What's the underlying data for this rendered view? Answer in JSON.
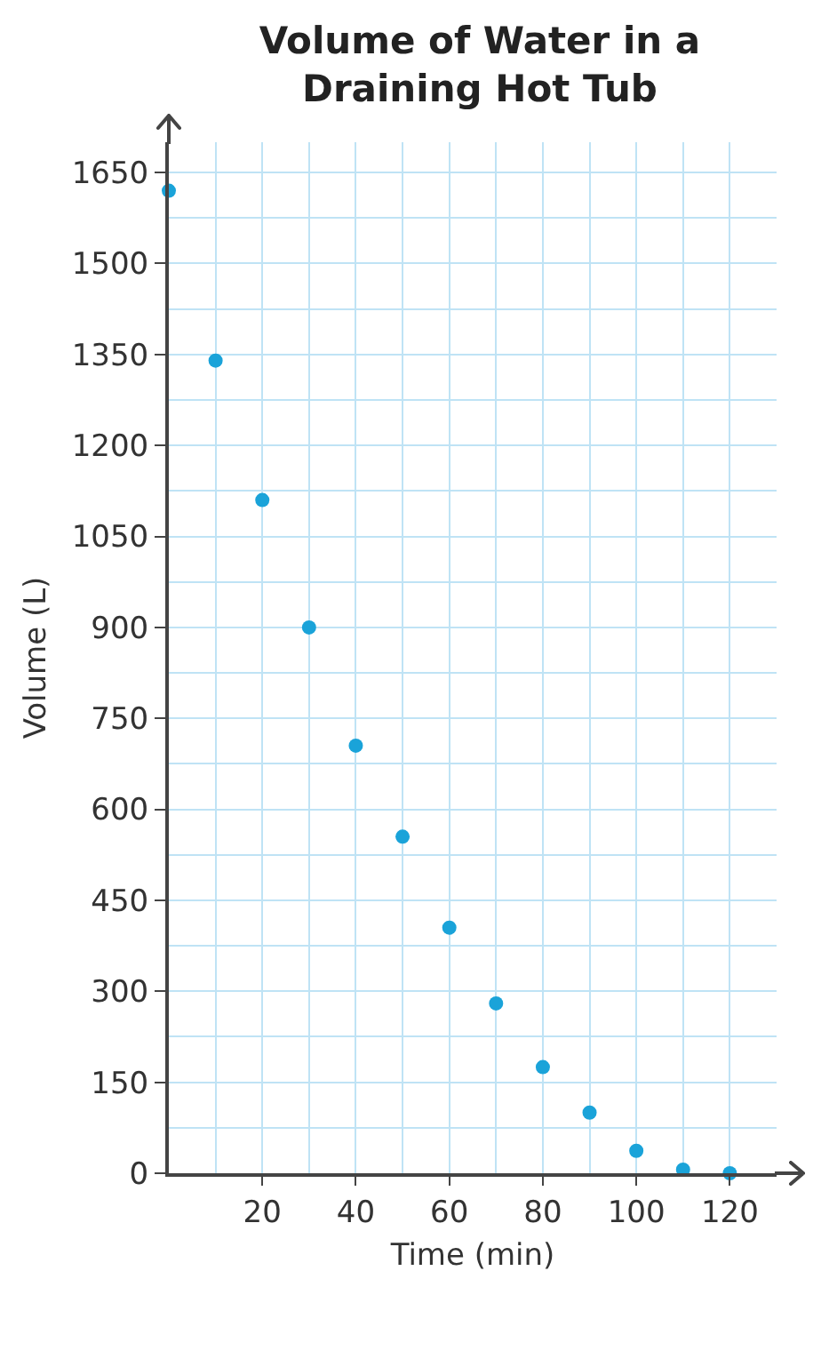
{
  "chart_data": {
    "type": "scatter",
    "title": "Volume of Water in a Draining Hot Tub",
    "xlabel": "Time (min)",
    "ylabel": "Volume (L)",
    "x": [
      0,
      10,
      20,
      30,
      40,
      50,
      60,
      70,
      80,
      90,
      100,
      110,
      120
    ],
    "series": [
      {
        "color": "#1aa3d9",
        "values": [
          1620,
          1340,
          1110,
          900,
          705,
          555,
          405,
          280,
          175,
          100,
          37,
          6,
          0
        ]
      }
    ],
    "xlim": [
      0,
      130
    ],
    "xticks": [
      20,
      40,
      60,
      80,
      100,
      120
    ],
    "ylim": [
      0,
      1700
    ],
    "yticks": [
      0,
      150,
      300,
      450,
      600,
      750,
      900,
      1050,
      1200,
      1350,
      1500,
      1650
    ],
    "grid": true,
    "marker": "circle"
  }
}
